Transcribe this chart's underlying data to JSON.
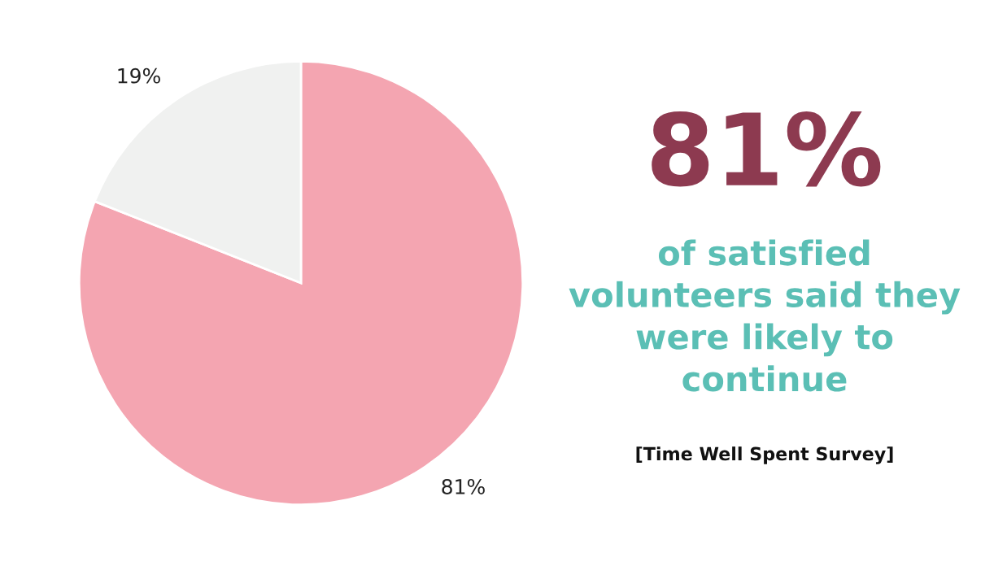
{
  "chart_data": {
    "type": "pie",
    "categories": [
      null,
      null
    ],
    "values": [
      81,
      19
    ],
    "colors": [
      "#f4a5b1",
      "#f0f1f0"
    ],
    "value_labels": [
      "81%",
      "19%"
    ],
    "annotations": [
      "81%",
      "of satisfied\nvolunteers said they\nwere likely to\ncontinue",
      "[Time Well Spent Survey]"
    ]
  }
}
